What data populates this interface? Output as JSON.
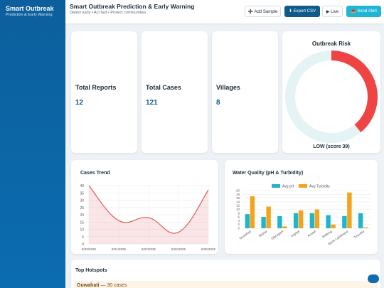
{
  "sidebar": {
    "title": "Smart Outbreak",
    "subtitle": "Prediction & Early Warning"
  },
  "header": {
    "title": "Smart Outbreak Prediction & Early Warning",
    "subtitle": "Detect early • Act fast • Protect communities",
    "buttons": [
      "➕ Add Sample",
      "⬇ Export CSV",
      "▶ Live",
      "📤 Send Alert"
    ]
  },
  "stats": [
    {
      "label": "Total Reports",
      "value": 12
    },
    {
      "label": "Total Cases",
      "value": 121
    },
    {
      "label": "Villages",
      "value": 8
    }
  ],
  "chart_data": [
    {
      "type": "donut",
      "title": "Outbreak Risk",
      "values": [
        39,
        61
      ],
      "colors": [
        "#ef4444",
        "#e4f3f3"
      ],
      "label": "LOW (score 39)"
    },
    {
      "type": "line",
      "title": "Cases Trend",
      "categories": [
        "9/20/2025",
        "9/21/2025",
        "9/22/2025",
        "9/24/2025",
        "9/25/2025"
      ],
      "values": [
        40,
        16,
        18,
        8,
        37
      ],
      "color": "#e05a5c",
      "ylim": [
        0,
        40
      ],
      "yticks": [
        0,
        5,
        10,
        15,
        20,
        25,
        30,
        35,
        40
      ],
      "grid": true
    },
    {
      "type": "bar",
      "title": "Water Quality (pH & Turbidity)",
      "categories": [
        "Guwahati",
        "Silchar",
        "Dibrugarh",
        "Imphal",
        "Aizawl",
        "Shillong",
        "North Lakhimpur",
        "Tinsukia"
      ],
      "series": [
        {
          "name": "Avg pH",
          "color": "#1fb5cc",
          "values": [
            7.5,
            6,
            6.5,
            8,
            8,
            7,
            6.5,
            8
          ]
        },
        {
          "name": "Avg Turbidity",
          "color": "#f4a41a",
          "values": [
            17,
            11.5,
            1,
            9.5,
            10,
            2,
            19,
            0.5
          ]
        }
      ],
      "ylim": [
        0,
        20
      ],
      "yticks": [
        0,
        2,
        4,
        6,
        8,
        10,
        12,
        14,
        16,
        18,
        20
      ],
      "grid": true
    }
  ],
  "hotspots": [
    {
      "name": "Guwahati",
      "detail": "— 30 cases"
    }
  ]
}
